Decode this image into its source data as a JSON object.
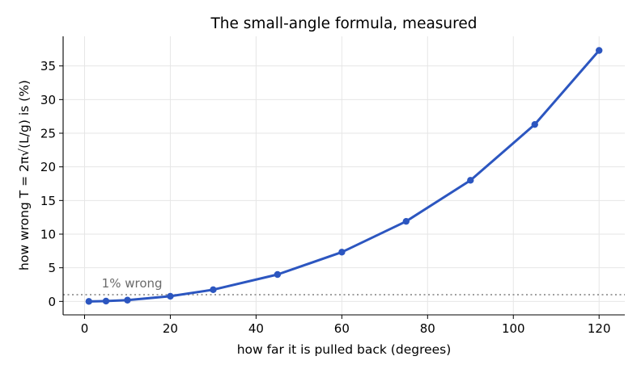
{
  "chart_data": {
    "type": "line",
    "title": "The small-angle formula, measured",
    "xlabel": "how far it is pulled back (degrees)",
    "ylabel": "how wrong T = 2π√(L/g) is (%)",
    "xlim": [
      -5,
      126
    ],
    "ylim": [
      -2,
      39.4
    ],
    "xticks": [
      0,
      20,
      40,
      60,
      80,
      100,
      120
    ],
    "yticks": [
      0,
      5,
      10,
      15,
      20,
      25,
      30,
      35
    ],
    "grid": true,
    "series": [
      {
        "x": [
          1,
          5,
          10,
          20,
          30,
          45,
          60,
          75,
          90,
          105,
          120
        ],
        "y": [
          0.0,
          0.05,
          0.19,
          0.77,
          1.74,
          4.0,
          7.32,
          11.9,
          18.0,
          26.3,
          37.3
        ],
        "color": "#2c56c0"
      }
    ],
    "reference_line": {
      "y": 1,
      "label": "1% wrong",
      "label_x": 4,
      "color": "#7f7f7f"
    }
  }
}
